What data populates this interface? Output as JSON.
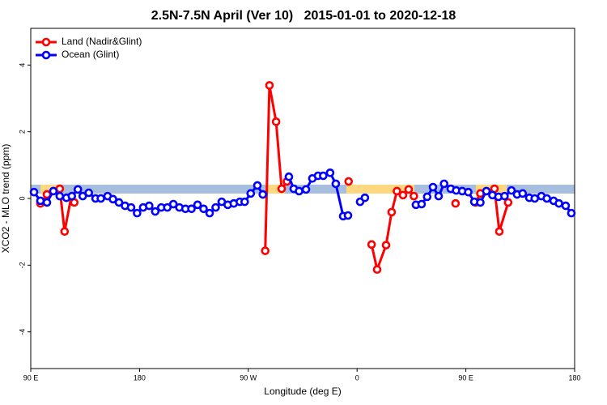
{
  "chart_data": {
    "type": "line",
    "title": "2.5N-7.5N April (Ver 10)   2015-01-01 to 2020-12-18",
    "x_label": "Longitude (deg E)",
    "y_label": "XCO2 - MLO trend (ppm)",
    "xlim": [
      90,
      540
    ],
    "ylim": [
      -5.1,
      5.1
    ],
    "xticks": [
      {
        "value": 90,
        "label": "90 E"
      },
      180,
      {
        "value": 270,
        "label": "90 W"
      },
      {
        "value": 360,
        "label": "0"
      },
      {
        "value": 450,
        "label": "90 E"
      },
      {
        "value": 540,
        "label": "180"
      }
    ],
    "yticks": [
      -4,
      -2,
      0,
      2,
      4
    ],
    "legend": "top-left",
    "series": [
      {
        "name": "Land (Nadir&Glint)",
        "color": "#ff0000",
        "x": [
          98,
          103.4,
          114,
          118,
          123.5,
          126,
          200,
          284,
          287.5,
          293,
          297.6,
          302,
          330,
          353,
          360,
          372,
          376.6,
          384,
          388.6,
          393,
          398,
          402.7,
          407,
          420,
          441.5,
          450,
          458,
          462,
          473.7,
          477.7,
          485
        ],
        "values": [
          -0.15,
          0.12,
          0.29,
          -0.99,
          0.05,
          -0.12,
          null,
          -1.57,
          3.39,
          2.3,
          0.29,
          0.51,
          null,
          0.51,
          null,
          -1.38,
          -2.13,
          -1.4,
          -0.41,
          0.22,
          0.1,
          0.27,
          0.07,
          null,
          -0.15,
          null,
          -0.12,
          0.15,
          0.29,
          -0.99,
          -0.12
        ]
      },
      {
        "name": "Ocean (Glint)",
        "color": "#0000ff",
        "x": [
          92.7,
          98,
          103.4,
          108.7,
          114,
          119.5,
          124,
          129,
          133,
          138,
          143.6,
          148,
          153.6,
          158,
          163,
          168,
          173,
          178,
          183,
          188,
          193,
          198,
          203,
          208,
          213,
          218,
          223,
          228,
          233,
          238,
          243,
          248,
          253,
          258,
          263,
          267,
          272,
          277.5,
          282,
          293,
          303.6,
          307.6,
          312,
          317.7,
          323,
          327.7,
          332,
          337.7,
          342.4,
          348.5,
          352.5,
          358,
          362.5,
          366.5,
          390,
          408.7,
          413.4,
          418,
          422.8,
          427.5,
          432,
          437.5,
          442,
          447,
          452,
          457,
          462,
          467,
          472,
          477,
          482,
          487.7,
          492.4,
          497,
          502.5,
          507,
          512.5,
          517,
          522.6,
          527,
          532.6,
          537.3
        ],
        "values": [
          0.19,
          -0.07,
          -0.12,
          0.22,
          0.07,
          0.02,
          0.07,
          0.27,
          0.07,
          0.17,
          0,
          0,
          0.07,
          -0.02,
          -0.12,
          -0.22,
          -0.27,
          -0.44,
          -0.27,
          -0.22,
          -0.39,
          -0.27,
          -0.27,
          -0.17,
          -0.27,
          -0.31,
          -0.31,
          -0.19,
          -0.31,
          -0.44,
          -0.27,
          -0.1,
          -0.19,
          -0.15,
          -0.1,
          -0.1,
          0.15,
          0.39,
          0.12,
          null,
          0.65,
          0.29,
          0.22,
          0.27,
          0.6,
          0.68,
          0.68,
          0.77,
          0.44,
          -0.53,
          -0.51,
          null,
          -0.1,
          0.02,
          null,
          -0.19,
          -0.17,
          0.05,
          0.34,
          0.07,
          0.44,
          0.29,
          0.24,
          0.22,
          0.19,
          -0.1,
          -0.12,
          0.22,
          0.1,
          0.05,
          0.07,
          0.24,
          0.12,
          0.15,
          0.02,
          0,
          0.07,
          0,
          -0.07,
          -0.15,
          -0.22,
          -0.44
        ]
      }
    ]
  }
}
